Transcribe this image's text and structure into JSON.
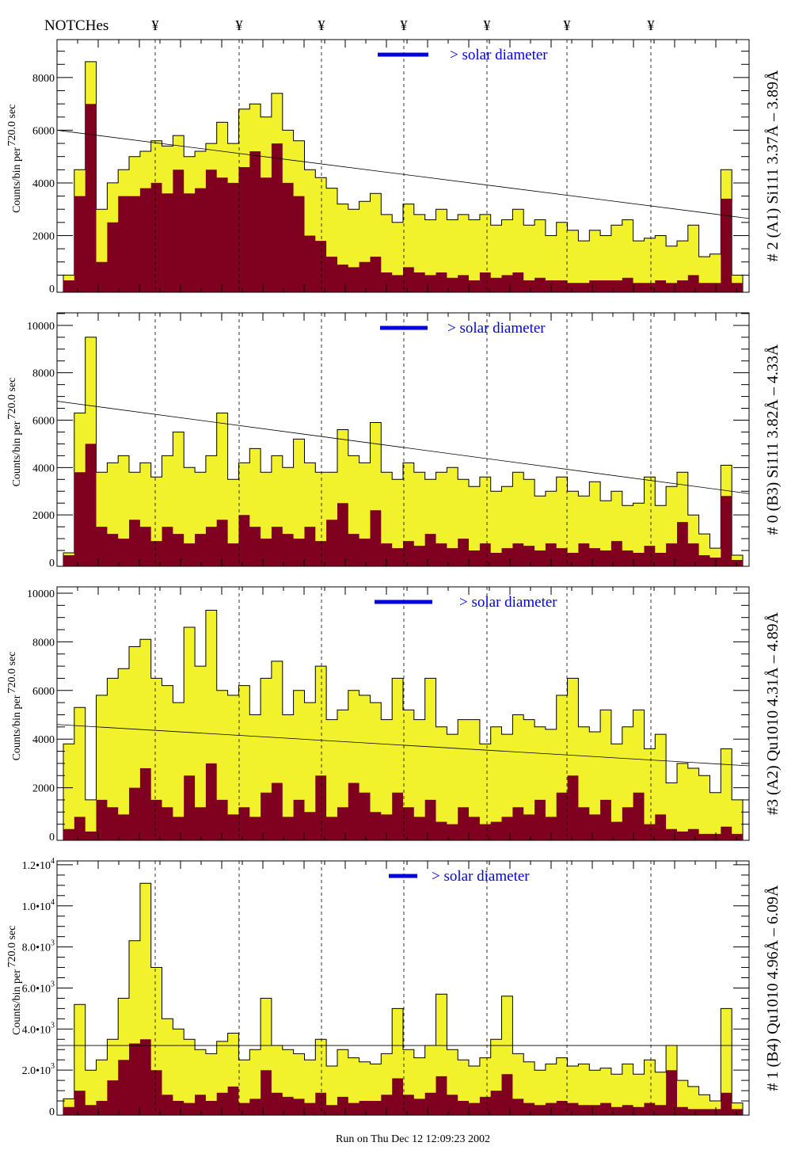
{
  "header": {
    "notches_label": "NOTCHes",
    "notch_symbol": "¥"
  },
  "footer": {
    "run_text": "Run on Thu Dec 12 12:09:23 2002"
  },
  "colors": {
    "total": "#f2f22c",
    "line": "#800020",
    "legend": "#0000e0"
  },
  "chart_data": [
    {
      "type": "bar",
      "title": "# 2 (A1) Si111  3.37Å – 3.89Å",
      "ylabel": [
        "Counts/bin per",
        "720.0 sec"
      ],
      "legend": "> solar diameter",
      "ylim": [
        0,
        9440
      ],
      "yticks": [
        {
          "v": 0,
          "label": "0"
        },
        {
          "v": 2000,
          "label": "2000"
        },
        {
          "v": 4000,
          "label": "4000"
        },
        {
          "v": 6000,
          "label": "6000"
        },
        {
          "v": 8000,
          "label": "8000"
        }
      ],
      "trend": [
        6000,
        2650
      ],
      "series": [
        {
          "name": "total",
          "values": [
            500,
            4500,
            8600,
            3000,
            4000,
            4500,
            5000,
            5200,
            5600,
            5400,
            5800,
            5000,
            5200,
            5500,
            6300,
            5500,
            6800,
            7000,
            6500,
            7400,
            6000,
            5600,
            4500,
            4200,
            3800,
            3200,
            3000,
            3300,
            3600,
            2800,
            2500,
            3200,
            2800,
            2600,
            3000,
            2600,
            2800,
            2600,
            2800,
            2400,
            2600,
            3000,
            2400,
            2600,
            2000,
            2500,
            2200,
            1800,
            2200,
            2000,
            2400,
            2600,
            1800,
            1900,
            2000,
            1600,
            1800,
            2400,
            1200,
            1300,
            4500,
            500
          ]
        },
        {
          "name": "line",
          "values": [
            300,
            3500,
            7000,
            1000,
            2500,
            3500,
            3500,
            3800,
            4000,
            3600,
            4500,
            3600,
            3800,
            4500,
            4200,
            4000,
            4600,
            5200,
            4200,
            5500,
            4000,
            3500,
            2000,
            1800,
            1200,
            900,
            800,
            1000,
            1200,
            600,
            500,
            800,
            600,
            500,
            600,
            400,
            500,
            300,
            600,
            400,
            500,
            600,
            300,
            400,
            300,
            300,
            200,
            200,
            300,
            300,
            300,
            400,
            200,
            200,
            300,
            200,
            300,
            500,
            200,
            200,
            3400,
            200
          ]
        }
      ]
    },
    {
      "type": "bar",
      "title": "# 0 (B3) Si111  3.82Å – 4.33Å",
      "ylabel": [
        "Counts/bin per",
        "720.0 sec"
      ],
      "legend": "> solar diameter",
      "ylim": [
        0,
        10530
      ],
      "yticks": [
        {
          "v": 0,
          "label": "0"
        },
        {
          "v": 2000,
          "label": "2000"
        },
        {
          "v": 4000,
          "label": "4000"
        },
        {
          "v": 6000,
          "label": "6000"
        },
        {
          "v": 8000,
          "label": "8000"
        },
        {
          "v": 10000,
          "label": "10000"
        }
      ],
      "trend": [
        6800,
        2900
      ],
      "series": [
        {
          "name": "total",
          "values": [
            400,
            6300,
            9500,
            3800,
            4200,
            4500,
            3800,
            4200,
            3600,
            4500,
            5500,
            4000,
            3800,
            4500,
            6300,
            3500,
            4200,
            4800,
            3800,
            4500,
            4000,
            5200,
            4200,
            3800,
            3800,
            5600,
            4500,
            4200,
            5900,
            3800,
            3500,
            4200,
            3800,
            3500,
            3800,
            4000,
            3500,
            3200,
            3600,
            3000,
            3200,
            3800,
            3500,
            2800,
            3000,
            3600,
            3000,
            2800,
            3400,
            2600,
            3000,
            2400,
            2500,
            3600,
            2400,
            3200,
            3800,
            2000,
            1200,
            600,
            4100,
            300
          ]
        },
        {
          "name": "line",
          "values": [
            300,
            3800,
            5000,
            1500,
            1200,
            1000,
            1800,
            1500,
            900,
            1500,
            1200,
            800,
            1200,
            1500,
            1800,
            800,
            2000,
            1500,
            1000,
            1500,
            1200,
            1000,
            1500,
            900,
            1800,
            2500,
            1200,
            1000,
            2200,
            800,
            600,
            900,
            700,
            1200,
            800,
            600,
            1000,
            500,
            800,
            400,
            600,
            800,
            700,
            500,
            800,
            600,
            400,
            800,
            600,
            500,
            900,
            500,
            400,
            700,
            400,
            800,
            1700,
            800,
            300,
            200,
            2800,
            100
          ]
        }
      ]
    },
    {
      "type": "bar",
      "title": "#3 (A2) Qu1010  4.31Å – 4.89Å",
      "ylabel": [
        "Counts/bin per",
        "720.0 sec"
      ],
      "legend": "> solar diameter",
      "ylim": [
        0,
        10260
      ],
      "yticks": [
        {
          "v": 0,
          "label": "0"
        },
        {
          "v": 2000,
          "label": "2000"
        },
        {
          "v": 4000,
          "label": "4000"
        },
        {
          "v": 6000,
          "label": "6000"
        },
        {
          "v": 8000,
          "label": "8000"
        },
        {
          "v": 10000,
          "label": "10000"
        }
      ],
      "trend": [
        4600,
        2900
      ],
      "series": [
        {
          "name": "total",
          "values": [
            3800,
            5300,
            1500,
            5800,
            6500,
            6900,
            7800,
            8100,
            6500,
            6200,
            5500,
            8600,
            7000,
            9300,
            6000,
            5800,
            6200,
            5000,
            6500,
            7200,
            5000,
            6000,
            5500,
            7000,
            4800,
            5200,
            6000,
            5800,
            5500,
            4800,
            6500,
            5200,
            4800,
            6500,
            4500,
            4200,
            4800,
            4800,
            3800,
            4500,
            4200,
            5000,
            4800,
            4500,
            4400,
            5800,
            6500,
            4500,
            4300,
            5200,
            3800,
            4500,
            5200,
            3600,
            4200,
            2200,
            3000,
            2800,
            2500,
            1800,
            3600,
            1500
          ]
        },
        {
          "name": "line",
          "values": [
            300,
            800,
            200,
            1500,
            1200,
            900,
            2000,
            2800,
            1500,
            1200,
            800,
            2500,
            1200,
            3000,
            1500,
            900,
            1200,
            800,
            1800,
            2200,
            800,
            1500,
            1000,
            2500,
            800,
            1200,
            2200,
            1800,
            1000,
            900,
            1800,
            1200,
            800,
            1500,
            600,
            500,
            1200,
            800,
            500,
            600,
            800,
            1200,
            900,
            1500,
            800,
            1800,
            2500,
            1200,
            900,
            1500,
            600,
            1200,
            1800,
            500,
            900,
            300,
            200,
            300,
            100,
            100,
            400,
            100
          ]
        }
      ]
    },
    {
      "type": "bar",
      "title": "# 1 (B4) Qu1010 4.96Å – 6.09Å",
      "ylabel": [
        "Counts/bin per",
        "720.0 sec"
      ],
      "legend": "> solar diameter",
      "ylim": [
        0,
        12190
      ],
      "yticks": [
        {
          "v": 0,
          "label": "0",
          "exp": ""
        },
        {
          "v": 2000,
          "label": "2.0•10",
          "exp": "3"
        },
        {
          "v": 4000,
          "label": "4.0•10",
          "exp": "3"
        },
        {
          "v": 6000,
          "label": "6.0•10",
          "exp": "3"
        },
        {
          "v": 8000,
          "label": "8.0•10",
          "exp": "3"
        },
        {
          "v": 10000,
          "label": "1.0•10",
          "exp": "4"
        },
        {
          "v": 12000,
          "label": "1.2•10",
          "exp": "4"
        }
      ],
      "trend": [
        3200,
        3200
      ],
      "series": [
        {
          "name": "total",
          "values": [
            600,
            5200,
            2000,
            2500,
            3500,
            5500,
            8300,
            11100,
            7000,
            4500,
            4000,
            3500,
            3000,
            2800,
            3400,
            3800,
            2500,
            3000,
            5500,
            3200,
            3000,
            2800,
            2500,
            3500,
            2200,
            3000,
            2600,
            2400,
            2300,
            2800,
            5000,
            3000,
            2600,
            3200,
            5700,
            3000,
            2500,
            2200,
            2600,
            3500,
            5600,
            2800,
            2400,
            2000,
            2300,
            2600,
            2200,
            2300,
            2000,
            2100,
            1800,
            2300,
            1800,
            2500,
            1900,
            3200,
            1500,
            1200,
            800,
            500,
            5000,
            400
          ]
        },
        {
          "name": "line",
          "values": [
            200,
            1000,
            300,
            500,
            1500,
            2500,
            3300,
            3500,
            2000,
            800,
            500,
            400,
            800,
            500,
            900,
            1200,
            400,
            600,
            2000,
            900,
            700,
            600,
            400,
            900,
            300,
            700,
            400,
            500,
            500,
            800,
            1600,
            800,
            600,
            900,
            1700,
            800,
            500,
            400,
            700,
            1000,
            1800,
            600,
            400,
            300,
            400,
            500,
            400,
            300,
            300,
            400,
            200,
            300,
            200,
            400,
            300,
            2000,
            200,
            100,
            100,
            100,
            900,
            100
          ]
        }
      ]
    }
  ]
}
